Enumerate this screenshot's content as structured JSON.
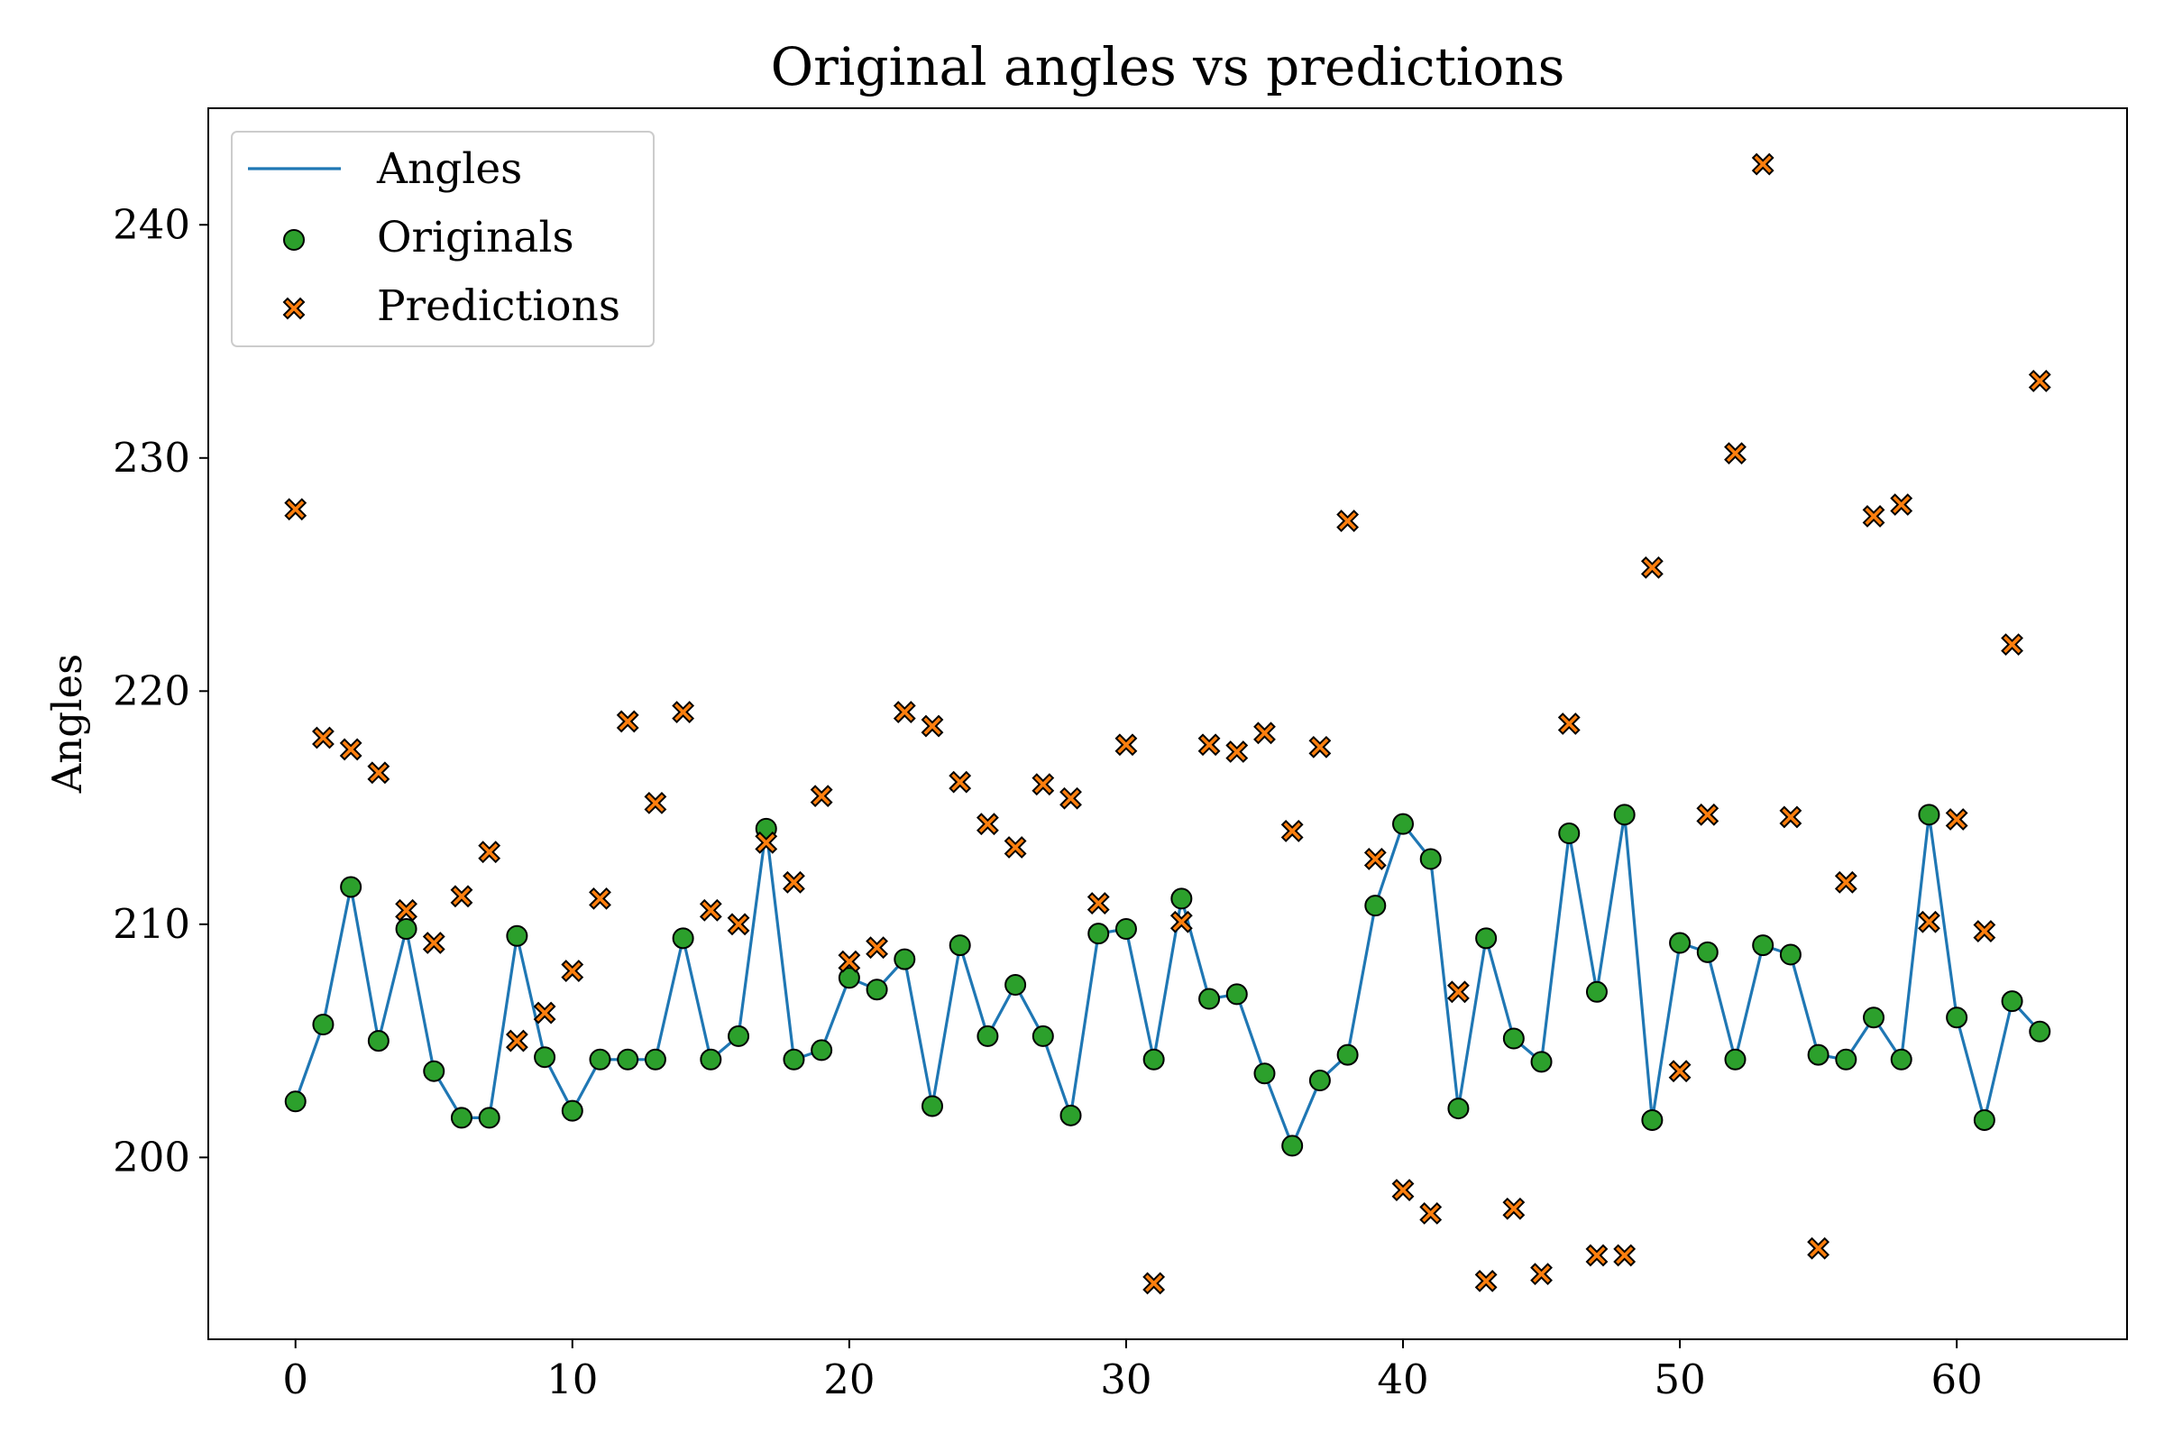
{
  "chart_data": {
    "type": "scatter",
    "title": "Original angles vs predictions",
    "xlabel": "",
    "ylabel": "Angles",
    "xlim": [
      -3.15,
      66.15
    ],
    "ylim": [
      192.2,
      245.0
    ],
    "x_ticks": [
      0,
      10,
      20,
      30,
      40,
      50,
      60
    ],
    "y_ticks": [
      200,
      210,
      220,
      230,
      240
    ],
    "grid": false,
    "legend_position": "top-left",
    "colors": {
      "angles_line": "#1f77b4",
      "originals_marker": "#2ca02c",
      "predictions_marker": "#ff7f0e",
      "marker_edge": "#000000"
    },
    "series": [
      {
        "name": "Angles",
        "kind": "line",
        "x": [
          0,
          1,
          2,
          3,
          4,
          5,
          6,
          7,
          8,
          9,
          10,
          11,
          12,
          13,
          14,
          15,
          16,
          17,
          18,
          19,
          20,
          21,
          22,
          23,
          24,
          25,
          26,
          27,
          28,
          29,
          30,
          31,
          32,
          33,
          34,
          35,
          36,
          37,
          38,
          39,
          40,
          41,
          42,
          43,
          44,
          45,
          46,
          47,
          48,
          49,
          50,
          51,
          52,
          53,
          54,
          55,
          56,
          57,
          58,
          59,
          60,
          61,
          62,
          63
        ],
        "y": [
          202.4,
          205.7,
          211.6,
          205.0,
          209.8,
          203.7,
          201.7,
          201.7,
          209.5,
          204.3,
          202.0,
          204.2,
          204.2,
          204.2,
          209.4,
          204.2,
          205.2,
          214.1,
          204.2,
          204.6,
          207.7,
          207.2,
          208.5,
          202.2,
          209.1,
          205.2,
          207.4,
          205.2,
          201.8,
          209.6,
          209.8,
          204.2,
          211.1,
          206.8,
          207.0,
          203.6,
          200.5,
          203.3,
          204.4,
          210.8,
          214.3,
          212.8,
          202.1,
          209.4,
          205.1,
          204.1,
          213.9,
          207.1,
          214.7,
          201.6,
          209.2,
          208.8,
          204.2,
          209.1,
          208.7,
          204.4,
          204.2,
          206.0,
          204.2,
          214.7,
          206.0,
          201.6,
          206.7,
          205.4
        ]
      },
      {
        "name": "Originals",
        "kind": "scatter",
        "marker": "circle",
        "x": [
          0,
          1,
          2,
          3,
          4,
          5,
          6,
          7,
          8,
          9,
          10,
          11,
          12,
          13,
          14,
          15,
          16,
          17,
          18,
          19,
          20,
          21,
          22,
          23,
          24,
          25,
          26,
          27,
          28,
          29,
          30,
          31,
          32,
          33,
          34,
          35,
          36,
          37,
          38,
          39,
          40,
          41,
          42,
          43,
          44,
          45,
          46,
          47,
          48,
          49,
          50,
          51,
          52,
          53,
          54,
          55,
          56,
          57,
          58,
          59,
          60,
          61,
          62,
          63
        ],
        "y": [
          202.4,
          205.7,
          211.6,
          205.0,
          209.8,
          203.7,
          201.7,
          201.7,
          209.5,
          204.3,
          202.0,
          204.2,
          204.2,
          204.2,
          209.4,
          204.2,
          205.2,
          214.1,
          204.2,
          204.6,
          207.7,
          207.2,
          208.5,
          202.2,
          209.1,
          205.2,
          207.4,
          205.2,
          201.8,
          209.6,
          209.8,
          204.2,
          211.1,
          206.8,
          207.0,
          203.6,
          200.5,
          203.3,
          204.4,
          210.8,
          214.3,
          212.8,
          202.1,
          209.4,
          205.1,
          204.1,
          213.9,
          207.1,
          214.7,
          201.6,
          209.2,
          208.8,
          204.2,
          209.1,
          208.7,
          204.4,
          204.2,
          206.0,
          204.2,
          214.7,
          206.0,
          201.6,
          206.7,
          205.4
        ]
      },
      {
        "name": "Predictions",
        "kind": "scatter",
        "marker": "x",
        "x": [
          0,
          1,
          2,
          3,
          4,
          5,
          6,
          7,
          8,
          9,
          10,
          11,
          12,
          13,
          14,
          15,
          16,
          17,
          18,
          19,
          20,
          21,
          22,
          23,
          24,
          25,
          26,
          27,
          28,
          29,
          30,
          31,
          32,
          33,
          34,
          35,
          36,
          37,
          38,
          39,
          40,
          41,
          42,
          43,
          44,
          45,
          46,
          47,
          48,
          49,
          50,
          51,
          52,
          53,
          54,
          55,
          56,
          57,
          58,
          59,
          60,
          61,
          62,
          63
        ],
        "y": [
          227.8,
          218.0,
          217.5,
          216.5,
          210.6,
          209.2,
          211.2,
          213.1,
          205.0,
          206.2,
          208.0,
          211.1,
          218.7,
          215.2,
          219.1,
          210.6,
          210.0,
          213.5,
          211.8,
          215.5,
          208.4,
          209.0,
          219.1,
          218.5,
          216.1,
          214.3,
          213.3,
          216.0,
          215.4,
          210.9,
          217.7,
          194.6,
          210.1,
          217.7,
          217.4,
          218.2,
          214.0,
          217.6,
          227.3,
          212.8,
          198.6,
          197.6,
          207.1,
          194.7,
          197.8,
          195.0,
          218.6,
          195.8,
          195.8,
          225.3,
          203.7,
          214.7,
          230.2,
          242.6,
          214.6,
          196.1,
          211.8,
          227.5,
          228.0,
          210.1,
          214.5,
          209.7,
          222.0,
          233.3
        ]
      }
    ]
  }
}
